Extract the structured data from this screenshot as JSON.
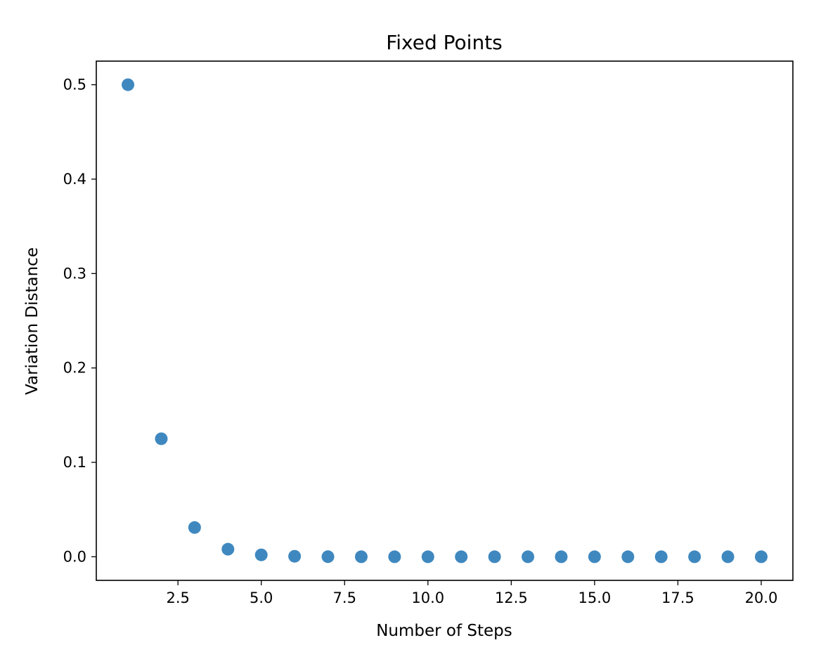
{
  "chart_data": {
    "type": "scatter",
    "title": "Fixed Points",
    "xlabel": "Number of Steps",
    "ylabel": "Variation Distance",
    "xlim": [
      0.05,
      20.95
    ],
    "ylim": [
      -0.025,
      0.525
    ],
    "xticks": [
      2.5,
      5.0,
      7.5,
      10.0,
      12.5,
      15.0,
      17.5,
      20.0
    ],
    "xtick_labels": [
      "2.5",
      "5.0",
      "7.5",
      "10.0",
      "12.5",
      "15.0",
      "17.5",
      "20.0"
    ],
    "yticks": [
      0.0,
      0.1,
      0.2,
      0.3,
      0.4,
      0.5
    ],
    "ytick_labels": [
      "0.0",
      "0.1",
      "0.2",
      "0.3",
      "0.4",
      "0.5"
    ],
    "grid": false,
    "marker_color": "#3f88bf",
    "series": [
      {
        "x": [
          1,
          2,
          3,
          4,
          5,
          6,
          7,
          8,
          9,
          10,
          11,
          12,
          13,
          14,
          15,
          16,
          17,
          18,
          19,
          20
        ],
        "y": [
          0.5,
          0.125,
          0.031,
          0.008,
          0.002,
          0.0005,
          0.0001,
          0.0,
          0.0,
          0.0,
          0.0,
          0.0,
          0.0,
          0.0,
          0.0,
          0.0,
          0.0,
          0.0,
          0.0,
          0.0
        ]
      }
    ]
  }
}
